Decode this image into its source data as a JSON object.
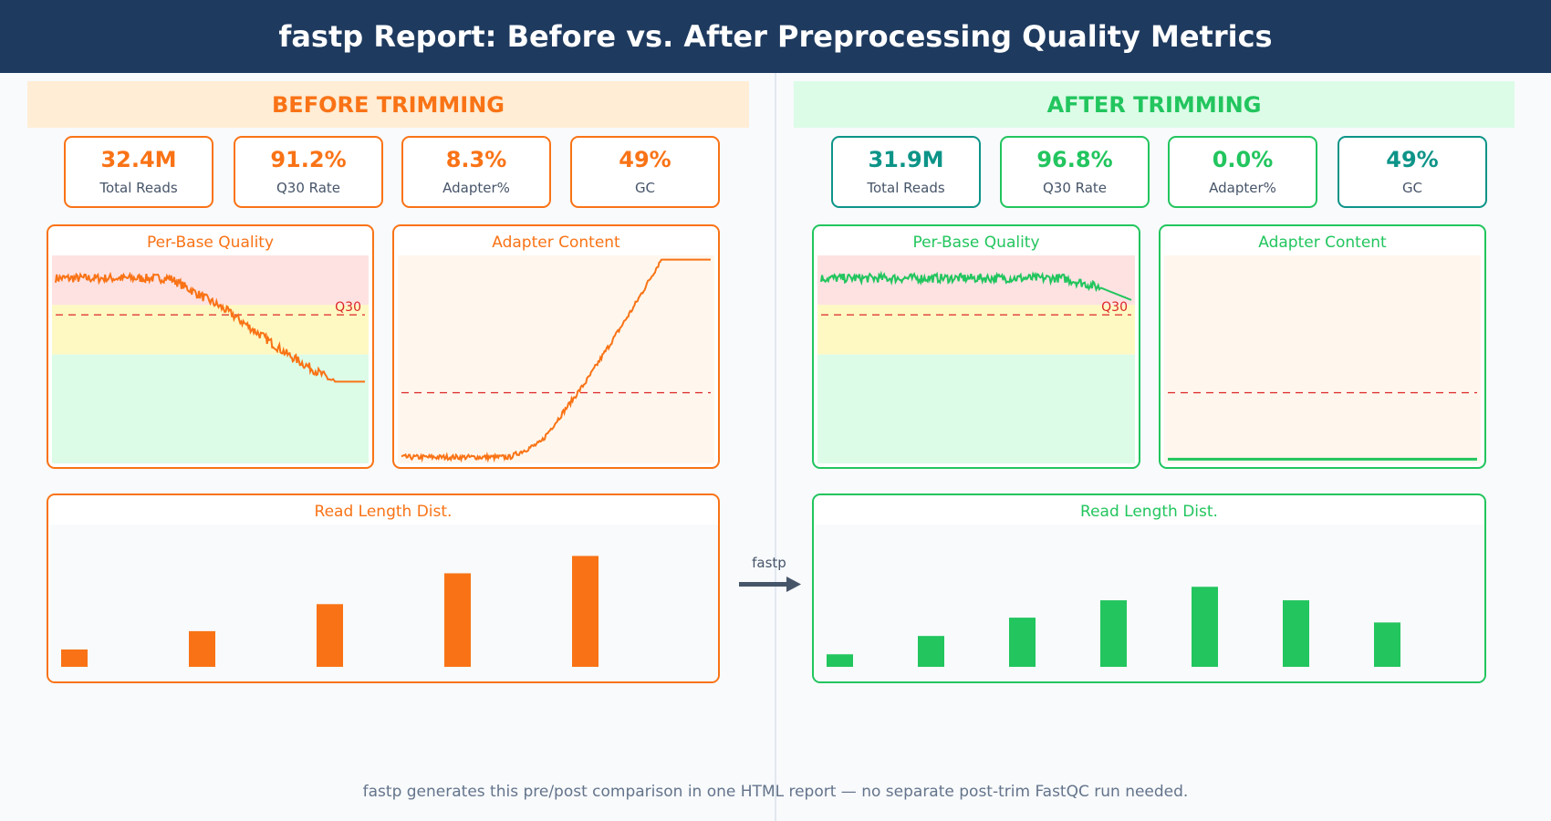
{
  "title": "fastp Report: Before vs. After Preprocessing Quality Metrics",
  "colors": {
    "before": "#f97316",
    "after": "#22c55e",
    "teal": "#0d9488",
    "header": "#1e3a5f",
    "q30": "#dc2626"
  },
  "before": {
    "banner": "BEFORE TRIMMING",
    "stats": [
      {
        "value": "32.4M",
        "label": "Total Reads"
      },
      {
        "value": "91.2%",
        "label": "Q30 Rate"
      },
      {
        "value": "8.3%",
        "label": "Adapter%"
      },
      {
        "value": "49%",
        "label": "GC"
      }
    ],
    "charts": {
      "quality": "Per-Base Quality",
      "adapter": "Adapter Content",
      "length": "Read Length Dist."
    }
  },
  "after": {
    "banner": "AFTER TRIMMING",
    "stats": [
      {
        "value": "31.9M",
        "label": "Total Reads"
      },
      {
        "value": "96.8%",
        "label": "Q30 Rate"
      },
      {
        "value": "0.0%",
        "label": "Adapter%"
      },
      {
        "value": "49%",
        "label": "GC"
      }
    ],
    "charts": {
      "quality": "Per-Base Quality",
      "adapter": "Adapter Content",
      "length": "Read Length Dist."
    }
  },
  "arrow_label": "fastp",
  "footer": "fastp generates this pre/post comparison in one HTML report — no separate post-trim FastQC run needed.",
  "chart_data": [
    {
      "type": "line",
      "title": "Per-Base Quality",
      "panel": "before",
      "ylim": [
        0,
        42
      ],
      "bands": [
        22,
        32
      ],
      "threshold": {
        "value": 30,
        "label": "Q30"
      },
      "points": [
        [
          0,
          37.4
        ],
        [
          0.37,
          37.4
        ],
        [
          0.55,
          31
        ],
        [
          0.75,
          22
        ],
        [
          0.9,
          16.5
        ],
        [
          1,
          16.5
        ]
      ]
    },
    {
      "type": "line",
      "title": "Adapter Content",
      "panel": "before",
      "ylim": [
        0,
        100
      ],
      "threshold": {
        "value": 34
      },
      "points": [
        [
          0,
          3
        ],
        [
          0.35,
          3
        ],
        [
          0.45,
          10
        ],
        [
          0.6,
          40
        ],
        [
          0.75,
          75
        ],
        [
          0.84,
          98
        ],
        [
          1,
          98
        ]
      ]
    },
    {
      "type": "bar",
      "title": "Read Length Dist.",
      "panel": "before",
      "ylim": [
        0,
        140
      ],
      "values": [
        18,
        37,
        65,
        97,
        115
      ]
    },
    {
      "type": "line",
      "title": "Per-Base Quality",
      "panel": "after",
      "ylim": [
        0,
        42
      ],
      "bands": [
        22,
        32
      ],
      "threshold": {
        "value": 30,
        "label": "Q30"
      },
      "points": [
        [
          0,
          37.4
        ],
        [
          0.78,
          37.4
        ],
        [
          0.9,
          35.5
        ],
        [
          1,
          33
        ]
      ]
    },
    {
      "type": "line",
      "title": "Adapter Content",
      "panel": "after",
      "ylim": [
        0,
        100
      ],
      "threshold": {
        "value": 34
      },
      "points": [
        [
          0,
          2
        ],
        [
          1,
          2
        ]
      ]
    },
    {
      "type": "bar",
      "title": "Read Length Dist.",
      "panel": "after",
      "ylim": [
        0,
        140
      ],
      "values": [
        13,
        32,
        51,
        69,
        83,
        69,
        46
      ]
    }
  ]
}
